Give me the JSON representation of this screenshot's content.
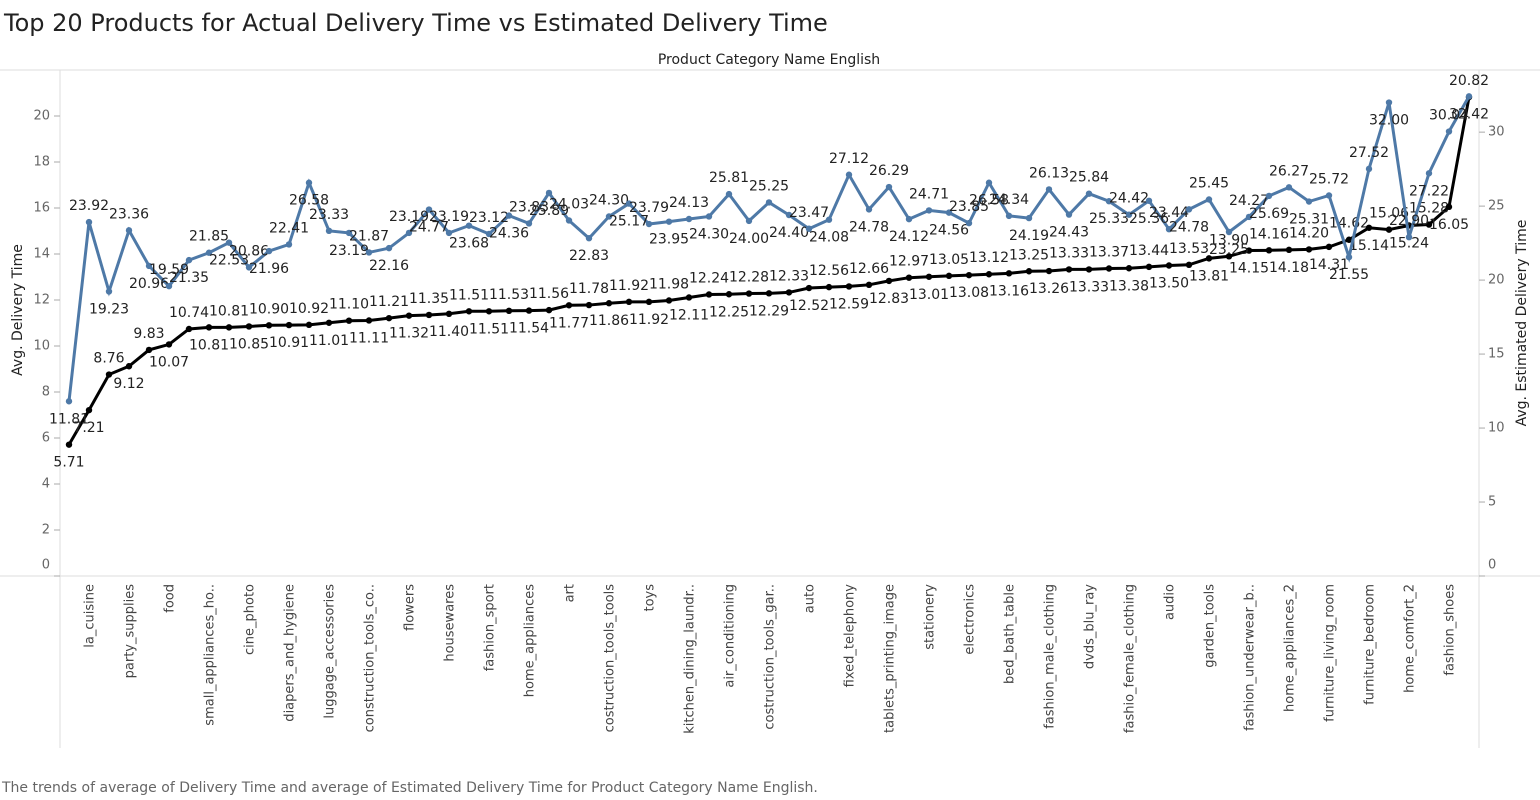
{
  "chart_data": {
    "type": "line",
    "title": "Top 20 Products for Actual Delivery Time vs Estimated Delivery Time",
    "header": "Product Category Name English",
    "caption": "The trends of average of Delivery Time and average of Estimated Delivery Time for Product Category Name English.",
    "y_label": "Avg. Delivery Time",
    "y2_label": "Avg. Estimated Delivery Time",
    "categories": [
      null,
      "la_cuisine",
      null,
      "party_supplies",
      null,
      "food",
      null,
      "small_appliances_ho..",
      null,
      "cine_photo",
      null,
      "diapers_and_hygiene",
      null,
      "luggage_accessories",
      null,
      "construction_tools_co..",
      null,
      "flowers",
      null,
      "housewares",
      null,
      "fashion_sport",
      null,
      "home_appliances",
      null,
      "art",
      null,
      "costruction_tools_tools",
      null,
      "toys",
      null,
      "kitchen_dining_laundr..",
      null,
      "air_conditioning",
      null,
      "costruction_tools_gar..",
      null,
      "auto",
      null,
      "fixed_telephony",
      null,
      "tablets_printing_image",
      null,
      "stationery",
      null,
      "electronics",
      null,
      "bed_bath_table",
      null,
      "fashion_male_clothing",
      null,
      "dvds_blu_ray",
      null,
      "fashio_female_clothing",
      null,
      "audio",
      null,
      "garden_tools",
      null,
      "fashion_underwear_b..",
      null,
      "home_appliances_2",
      null,
      "furniture_living_room",
      null,
      "furniture_bedroom",
      null,
      "home_comfort_2",
      null,
      "fashion_shoes",
      null
    ],
    "ylim": [
      0,
      22
    ],
    "yticks": [
      0,
      2,
      4,
      6,
      8,
      10,
      12,
      14,
      16,
      18,
      20
    ],
    "y2lim": [
      0,
      34.2
    ],
    "y2ticks": [
      0,
      5,
      10,
      15,
      20,
      25,
      30
    ],
    "series": [
      {
        "name": "Avg. Delivery Time",
        "color": "#000000",
        "axis": "y",
        "values": [
          5.71,
          7.21,
          8.76,
          9.12,
          9.83,
          10.07,
          10.74,
          10.81,
          10.81,
          10.85,
          10.9,
          10.91,
          10.92,
          11.01,
          11.1,
          11.11,
          11.21,
          11.32,
          11.35,
          11.4,
          11.51,
          11.51,
          11.53,
          11.54,
          11.56,
          11.77,
          11.78,
          11.86,
          11.92,
          11.92,
          11.98,
          12.11,
          12.24,
          12.25,
          12.28,
          12.29,
          12.33,
          12.52,
          12.56,
          12.59,
          12.66,
          12.83,
          12.97,
          13.01,
          13.05,
          13.08,
          13.12,
          13.16,
          13.25,
          13.26,
          13.33,
          13.33,
          13.37,
          13.38,
          13.44,
          13.5,
          13.53,
          13.81,
          13.9,
          14.15,
          14.16,
          14.18,
          14.2,
          14.31,
          14.62,
          15.14,
          15.06,
          15.24,
          15.28,
          16.05,
          20.82
        ],
        "value_labels": [
          "5.71",
          "7.21",
          "8.76",
          "9.12",
          "9.83",
          "10.07",
          "10.74",
          "10.81",
          "10.81",
          "10.85",
          "10.90",
          "10.91",
          "10.92",
          "11.01",
          "11.10",
          "11.11",
          "11.21",
          "11.32",
          "11.35",
          "11.40",
          "11.51",
          "11.51",
          "11.53",
          "11.54",
          "11.56",
          "11.77",
          "11.78",
          "11.86",
          "11.92",
          "11.92",
          "11.98",
          "12.11",
          "12.24",
          "12.25",
          "12.28",
          "12.29",
          "12.33",
          "12.52",
          "12.56",
          "12.59",
          "12.66",
          "12.83",
          "12.97",
          "13.01",
          "13.05",
          "13.08",
          "13.12",
          "13.16",
          "13.25",
          "13.26",
          "13.33",
          "13.33",
          "13.37",
          "13.38",
          "13.44",
          "13.50",
          "13.53",
          "13.81",
          "13.90",
          "14.15",
          "14.16",
          "14.18",
          "14.20",
          "14.31",
          "14.62",
          "15.14",
          "15.06",
          "15.24",
          "15.28",
          "16.05",
          "20.82"
        ]
      },
      {
        "name": "Avg. Estimated Delivery Time",
        "color": "#4e79a7",
        "axis": "y2",
        "values": [
          11.81,
          23.92,
          19.23,
          23.36,
          20.96,
          19.59,
          21.35,
          21.85,
          22.53,
          20.86,
          21.96,
          22.41,
          26.58,
          23.33,
          23.19,
          21.87,
          22.16,
          23.19,
          24.77,
          23.19,
          23.68,
          23.12,
          24.36,
          23.83,
          25.89,
          24.03,
          22.83,
          24.3,
          25.17,
          23.79,
          23.95,
          24.13,
          24.3,
          25.81,
          24,
          25.25,
          24.4,
          23.47,
          24.08,
          27.12,
          24.78,
          26.29,
          24.12,
          24.71,
          24.56,
          23.85,
          26.58,
          24.34,
          24.19,
          26.13,
          24.43,
          25.84,
          25.33,
          24.42,
          25.36,
          23.44,
          24.78,
          25.45,
          23.25,
          24.27,
          25.69,
          26.27,
          25.31,
          25.72,
          21.55,
          27.52,
          32,
          22.9,
          27.22,
          30.04,
          32.42
        ],
        "value_labels": [
          "11.81",
          "23.92",
          "19.23",
          "23.36",
          "20.96",
          "19.59",
          "21.35",
          "21.85",
          "22.53",
          "20.86",
          "21.96",
          "22.41",
          "26.58",
          "23.33",
          "23.19",
          "21.87",
          "22.16",
          "23.19",
          "24.77",
          "23.19",
          "23.68",
          "23.12",
          "24.36",
          "23.83",
          "25.89",
          "24.03",
          "22.83",
          "24.30",
          "25.17",
          "23.79",
          "23.95",
          "24.13",
          "24.30",
          "25.81",
          "24.00",
          "25.25",
          "24.40",
          "23.47",
          "24.08",
          "27.12",
          "24.78",
          "26.29",
          "24.12",
          "24.71",
          "24.56",
          "23.85",
          "26.58",
          "24.34",
          "24.19",
          "26.13",
          "24.43",
          "25.84",
          "25.33",
          "24.42",
          "25.36",
          "23.44",
          "24.78",
          "25.45",
          "23.25",
          "24.27",
          "25.69",
          "26.27",
          "25.31",
          "25.72",
          "21.55",
          "27.52",
          "32.00",
          "22.90",
          "27.22",
          "30.04",
          "32.42"
        ]
      }
    ]
  }
}
